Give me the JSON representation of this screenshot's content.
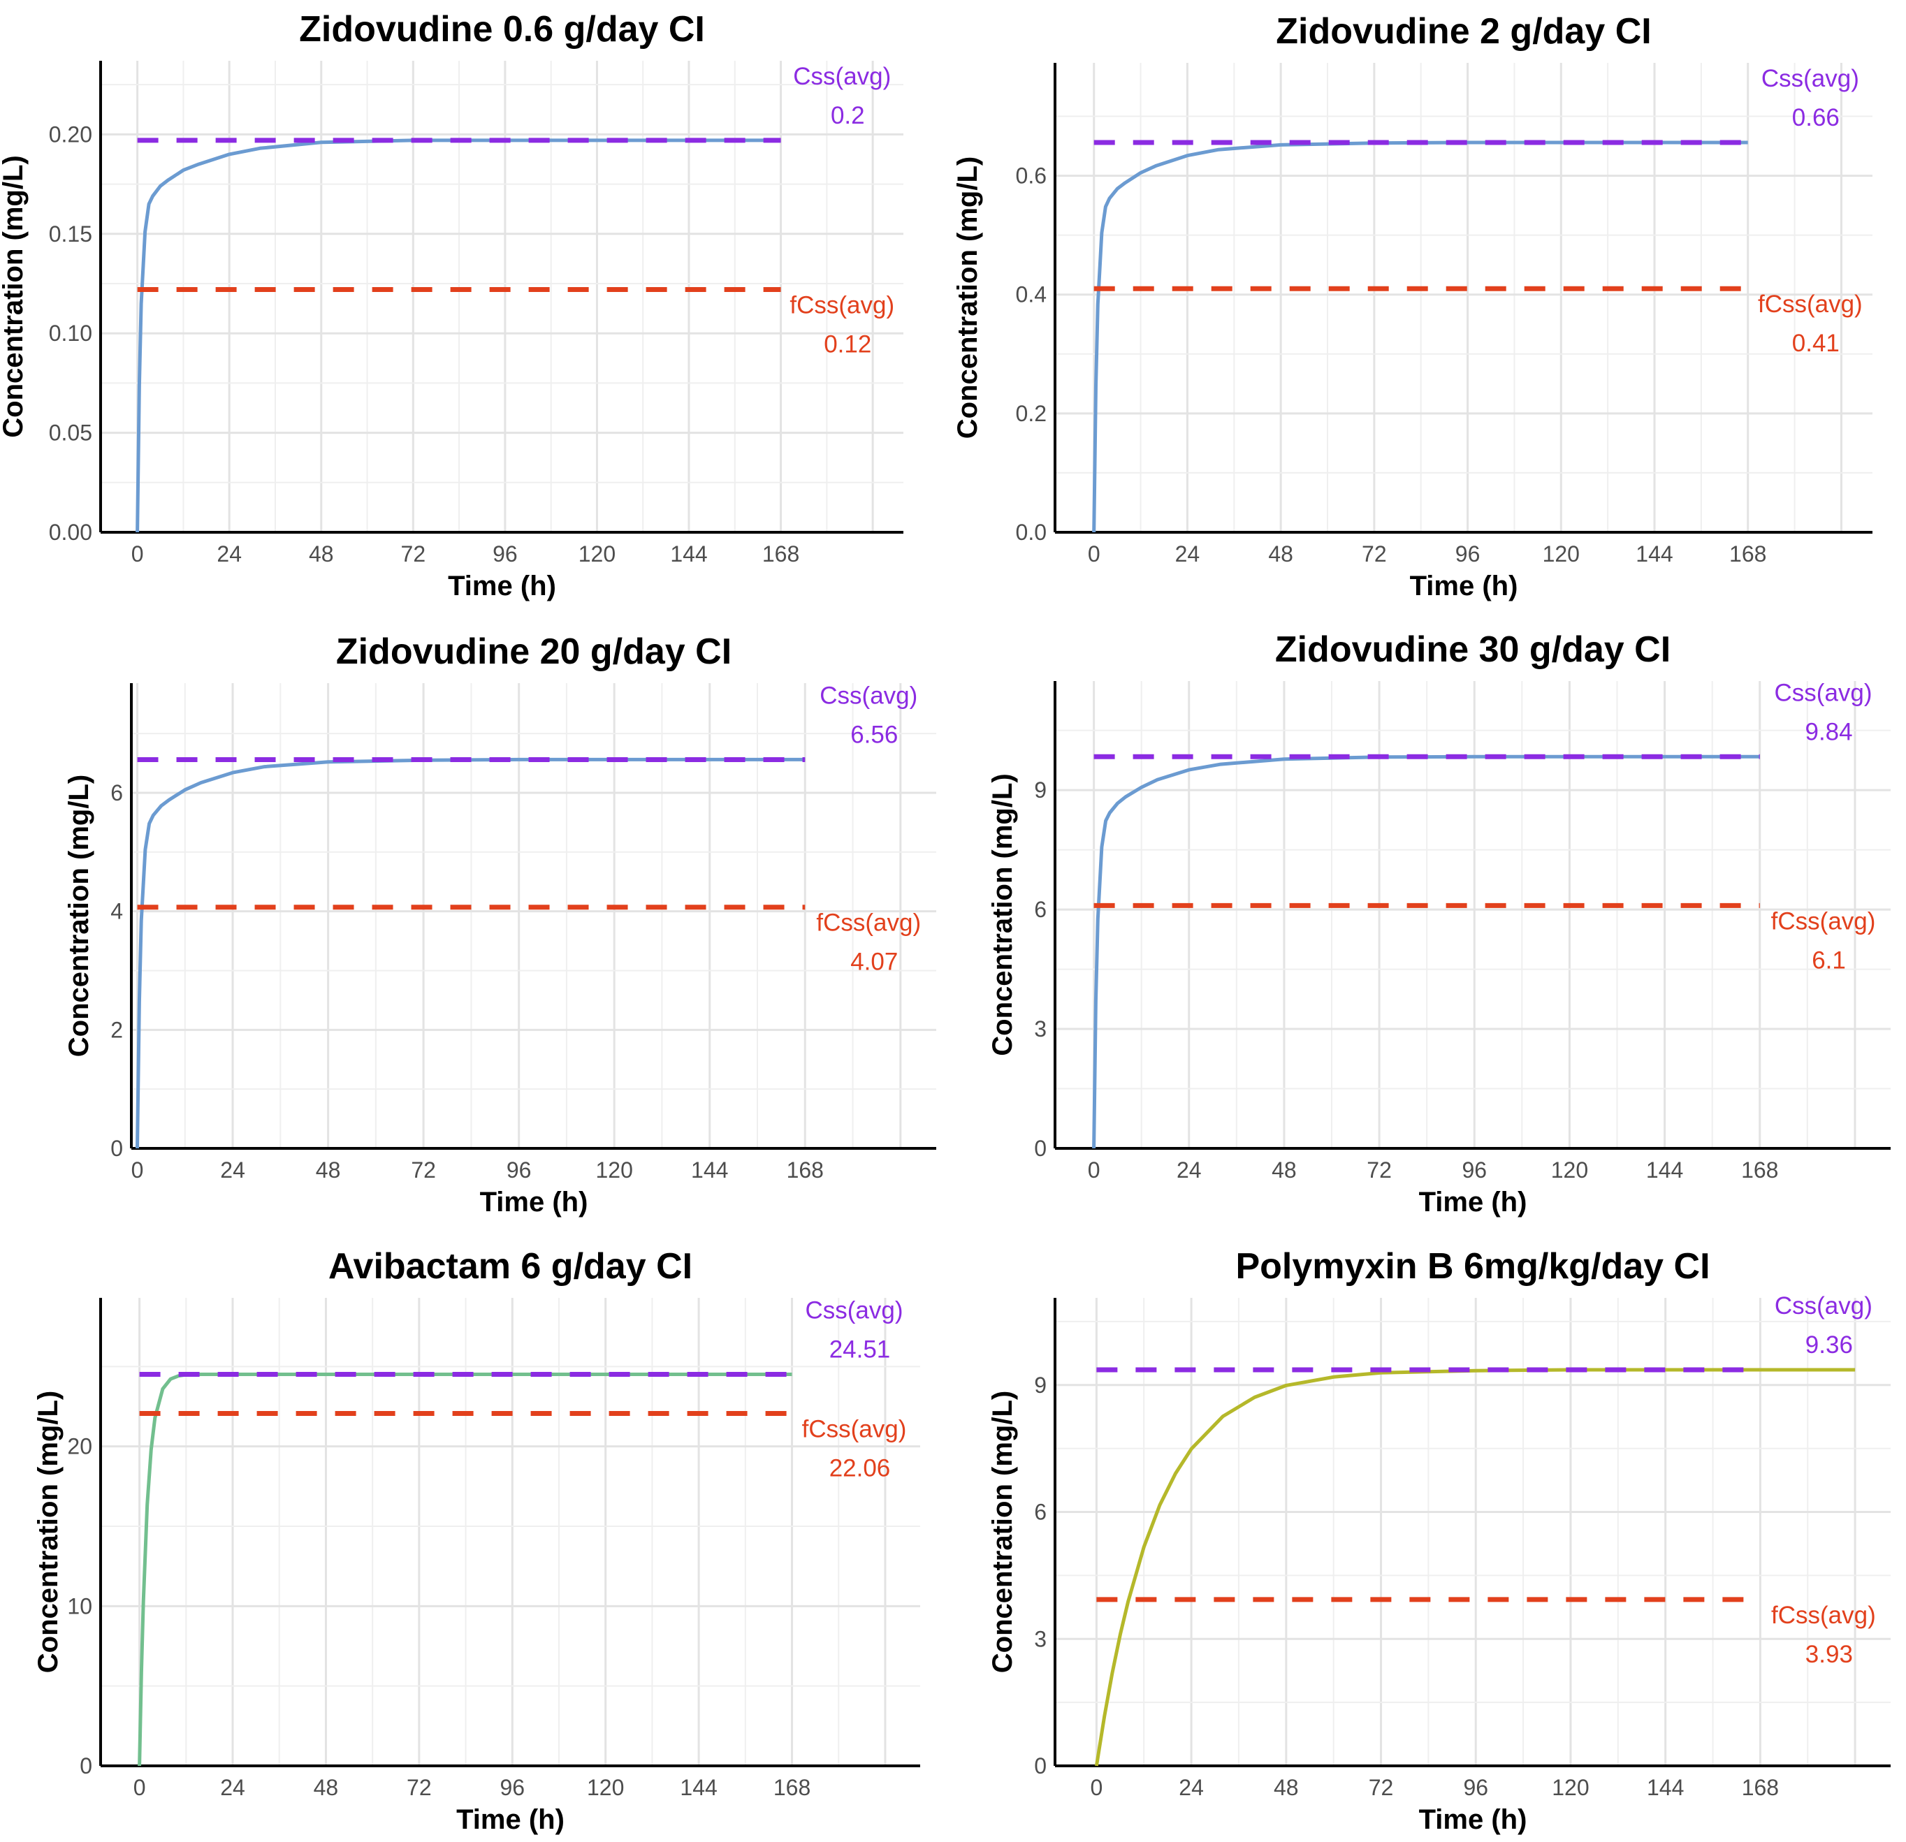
{
  "chart_data": [
    {
      "type": "line",
      "title": "Zidovudine 0.6 g/day CI",
      "xlabel": "Time (h)",
      "ylabel": "Concentration (mg/L)",
      "xlim": [
        -9.6,
        200
      ],
      "ylim": [
        0,
        0.237
      ],
      "xticks": [
        "0",
        "24",
        "48",
        "72",
        "96",
        "120",
        "144",
        "168"
      ],
      "yticks": [
        "0.00",
        "0.05",
        "0.10",
        "0.15",
        "0.20"
      ],
      "ytick_values": [
        0,
        0.05,
        0.1,
        0.15,
        0.2
      ],
      "y_minor": 0.025,
      "series": {
        "color": "#6b9bd1",
        "x": [
          0,
          0.5,
          1,
          2,
          3,
          4,
          6,
          8,
          12,
          16,
          24,
          32,
          48,
          72,
          96,
          120,
          144,
          168
        ],
        "y": [
          0,
          0.074,
          0.115,
          0.151,
          0.165,
          0.169,
          0.174,
          0.177,
          0.182,
          0.185,
          0.19,
          0.193,
          0.196,
          0.197,
          0.197,
          0.197,
          0.197,
          0.197
        ]
      },
      "ref_lines": [
        {
          "name": "Css(avg)",
          "value": 0.197,
          "label": "0.2",
          "color": "#8b2be2",
          "x_range": [
            0,
            168
          ],
          "position": "above"
        },
        {
          "name": "fCss(avg)",
          "value": 0.122,
          "label": "0.12",
          "color": "#e2401c",
          "x_range": [
            0,
            168
          ],
          "position": "below"
        }
      ]
    },
    {
      "type": "line",
      "title": "Zidovudine 2 g/day CI",
      "xlabel": "Time (h)",
      "ylabel": "Concentration (mg/L)",
      "xlim": [
        -10,
        200
      ],
      "ylim": [
        0,
        0.79
      ],
      "xticks": [
        "0",
        "24",
        "48",
        "72",
        "96",
        "120",
        "144",
        "168"
      ],
      "yticks": [
        "0.0",
        "0.2",
        "0.4",
        "0.6"
      ],
      "ytick_values": [
        0,
        0.2,
        0.4,
        0.6
      ],
      "y_minor": 0.1,
      "series": {
        "color": "#6b9bd1",
        "x": [
          0,
          0.5,
          1,
          2,
          3,
          4,
          6,
          8,
          12,
          16,
          24,
          32,
          48,
          72,
          96,
          120,
          144,
          168
        ],
        "y": [
          0,
          0.247,
          0.384,
          0.504,
          0.548,
          0.562,
          0.578,
          0.588,
          0.605,
          0.617,
          0.634,
          0.644,
          0.652,
          0.655,
          0.656,
          0.656,
          0.656,
          0.656
        ]
      },
      "ref_lines": [
        {
          "name": "Css(avg)",
          "value": 0.656,
          "label": "0.66",
          "color": "#8b2be2",
          "x_range": [
            0,
            168
          ],
          "position": "above"
        },
        {
          "name": "fCss(avg)",
          "value": 0.41,
          "label": "0.41",
          "color": "#e2401c",
          "x_range": [
            0,
            168
          ],
          "position": "below"
        }
      ]
    },
    {
      "type": "line",
      "title": "Zidovudine 20 g/day CI",
      "xlabel": "Time (h)",
      "ylabel": "Concentration (mg/L)",
      "xlim": [
        -1.5,
        201
      ],
      "ylim": [
        0,
        7.85
      ],
      "xticks": [
        "0",
        "24",
        "48",
        "72",
        "96",
        "120",
        "144",
        "168"
      ],
      "yticks": [
        "0",
        "2",
        "4",
        "6"
      ],
      "ytick_values": [
        0,
        2,
        4,
        6
      ],
      "y_minor": 1,
      "series": {
        "color": "#6b9bd1",
        "x": [
          0,
          0.5,
          1,
          2,
          3,
          4,
          6,
          8,
          12,
          16,
          24,
          32,
          48,
          72,
          96,
          120,
          144,
          168
        ],
        "y": [
          0,
          2.47,
          3.84,
          5.04,
          5.48,
          5.62,
          5.78,
          5.88,
          6.05,
          6.17,
          6.34,
          6.44,
          6.52,
          6.55,
          6.56,
          6.56,
          6.56,
          6.56
        ]
      },
      "ref_lines": [
        {
          "name": "Css(avg)",
          "value": 6.56,
          "label": "6.56",
          "color": "#8b2be2",
          "x_range": [
            0,
            168
          ],
          "position": "above"
        },
        {
          "name": "fCss(avg)",
          "value": 4.07,
          "label": "4.07",
          "color": "#e2401c",
          "x_range": [
            0,
            168
          ],
          "position": "below"
        }
      ]
    },
    {
      "type": "line",
      "title": "Zidovudine 30 g/day CI",
      "xlabel": "Time (h)",
      "ylabel": "Concentration (mg/L)",
      "xlim": [
        -9.8,
        201
      ],
      "ylim": [
        0,
        11.74
      ],
      "xticks": [
        "0",
        "24",
        "48",
        "72",
        "96",
        "120",
        "144",
        "168"
      ],
      "yticks": [
        "0",
        "3",
        "6",
        "9"
      ],
      "ytick_values": [
        0,
        3,
        6,
        9
      ],
      "y_minor": 1.5,
      "series": {
        "color": "#6b9bd1",
        "x": [
          0,
          0.5,
          1,
          2,
          3,
          4,
          6,
          8,
          12,
          16,
          24,
          32,
          48,
          72,
          96,
          120,
          144,
          168
        ],
        "y": [
          0,
          3.7,
          5.76,
          7.57,
          8.23,
          8.43,
          8.67,
          8.83,
          9.07,
          9.26,
          9.51,
          9.65,
          9.78,
          9.83,
          9.84,
          9.84,
          9.84,
          9.84
        ]
      },
      "ref_lines": [
        {
          "name": "Css(avg)",
          "value": 9.84,
          "label": "9.84",
          "color": "#8b2be2",
          "x_range": [
            0,
            168
          ],
          "position": "above"
        },
        {
          "name": "fCss(avg)",
          "value": 6.1,
          "label": "6.1",
          "color": "#e2401c",
          "x_range": [
            0,
            168
          ],
          "position": "below"
        }
      ]
    },
    {
      "type": "line",
      "title": "Avibactam 6 g/day CI",
      "xlabel": "Time (h)",
      "ylabel": "Concentration (mg/L)",
      "xlim": [
        -10,
        201
      ],
      "ylim": [
        0,
        29.3
      ],
      "xticks": [
        "0",
        "24",
        "48",
        "72",
        "96",
        "120",
        "144",
        "168"
      ],
      "yticks": [
        "0",
        "10",
        "20"
      ],
      "ytick_values": [
        0,
        10,
        20
      ],
      "y_minor": 5,
      "series": {
        "color": "#72bf8e",
        "x": [
          0,
          0.5,
          1,
          2,
          3,
          4,
          6,
          8,
          10,
          12,
          16,
          24,
          48,
          96,
          168
        ],
        "y": [
          0,
          5.88,
          10.29,
          16.35,
          19.8,
          21.79,
          23.6,
          24.22,
          24.41,
          24.49,
          24.51,
          24.51,
          24.51,
          24.51,
          24.51
        ]
      },
      "ref_lines": [
        {
          "name": "Css(avg)",
          "value": 24.51,
          "label": "24.51",
          "color": "#8b2be2",
          "x_range": [
            0,
            168
          ],
          "position": "above"
        },
        {
          "name": "fCss(avg)",
          "value": 22.06,
          "label": "22.06",
          "color": "#e2401c",
          "x_range": [
            0,
            168
          ],
          "position": "below"
        }
      ]
    },
    {
      "type": "line",
      "title": "Polymyxin B 6mg/kg/day CI",
      "xlabel": "Time (h)",
      "ylabel": "Concentration (mg/L)",
      "xlim": [
        -10.5,
        201
      ],
      "ylim": [
        0,
        11.06
      ],
      "xticks": [
        "0",
        "24",
        "48",
        "72",
        "96",
        "120",
        "144",
        "168"
      ],
      "yticks": [
        "0",
        "3",
        "6",
        "9"
      ],
      "ytick_values": [
        0,
        3,
        6,
        9
      ],
      "y_minor": 1.5,
      "series": {
        "color": "#b5b82a",
        "x": [
          0,
          2,
          4,
          6,
          8,
          12,
          16,
          20,
          24,
          32,
          40,
          48,
          60,
          72,
          96,
          120,
          144,
          168,
          192
        ],
        "y": [
          0,
          1.17,
          2.2,
          3.1,
          3.88,
          5.17,
          6.16,
          6.91,
          7.49,
          8.26,
          8.71,
          8.99,
          9.19,
          9.29,
          9.34,
          9.36,
          9.36,
          9.36,
          9.36
        ]
      },
      "ref_lines": [
        {
          "name": "Css(avg)",
          "value": 9.36,
          "label": "9.36",
          "color": "#8b2be2",
          "x_range": [
            0,
            164
          ],
          "position": "above"
        },
        {
          "name": "fCss(avg)",
          "value": 3.93,
          "label": "3.93",
          "color": "#e2401c",
          "x_range": [
            0,
            164
          ],
          "position": "below"
        }
      ]
    }
  ]
}
